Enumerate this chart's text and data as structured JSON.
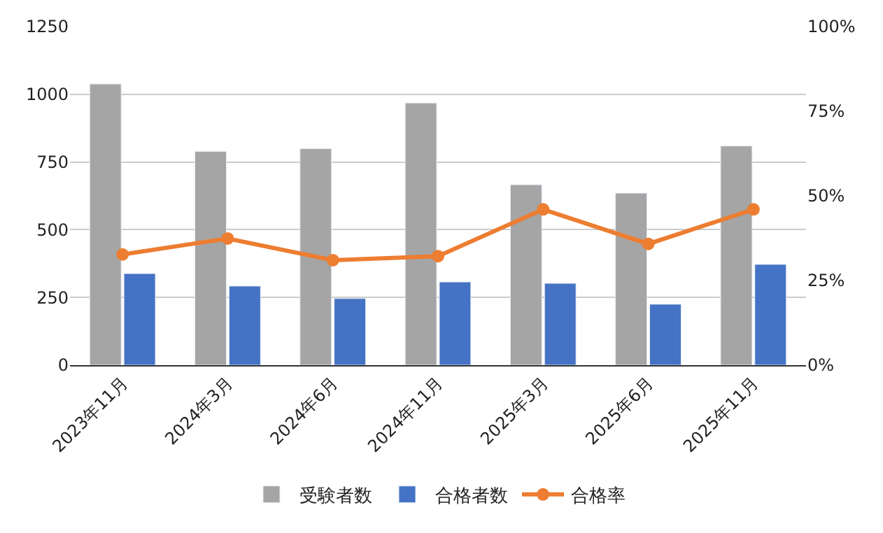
{
  "chart_data": {
    "type": "bar",
    "categories": [
      "2023年11月",
      "2024年3月",
      "2024年6月",
      "2024年11月",
      "2025年3月",
      "2025年6月",
      "2025年11月"
    ],
    "series": [
      {
        "name": "受験者数",
        "color": "#a5a5a5",
        "values": [
          1038,
          789,
          799,
          968,
          666,
          635,
          809
        ]
      },
      {
        "name": "合格者数",
        "color": "#4472c4",
        "values": [
          338,
          292,
          246,
          307,
          302,
          225,
          372
        ]
      },
      {
        "name": "合格率",
        "type": "line",
        "axis": "y2",
        "color": "#ed7d31",
        "marker": "circle",
        "values": [
          32.7,
          37.4,
          31.0,
          32.2,
          46.0,
          35.8,
          46.0
        ]
      }
    ],
    "ylim": [
      0,
      1250
    ],
    "yticks": [
      0,
      250,
      500,
      750,
      1000,
      1250
    ],
    "y2lim": [
      0,
      100
    ],
    "y2ticks": [
      {
        "value": 0,
        "label": "0%"
      },
      {
        "value": 25,
        "label": "25%"
      },
      {
        "value": 50,
        "label": "50%"
      },
      {
        "value": 75,
        "label": "75%"
      },
      {
        "value": 100,
        "label": "100%"
      }
    ],
    "grid": "y",
    "legend": "bottom"
  }
}
